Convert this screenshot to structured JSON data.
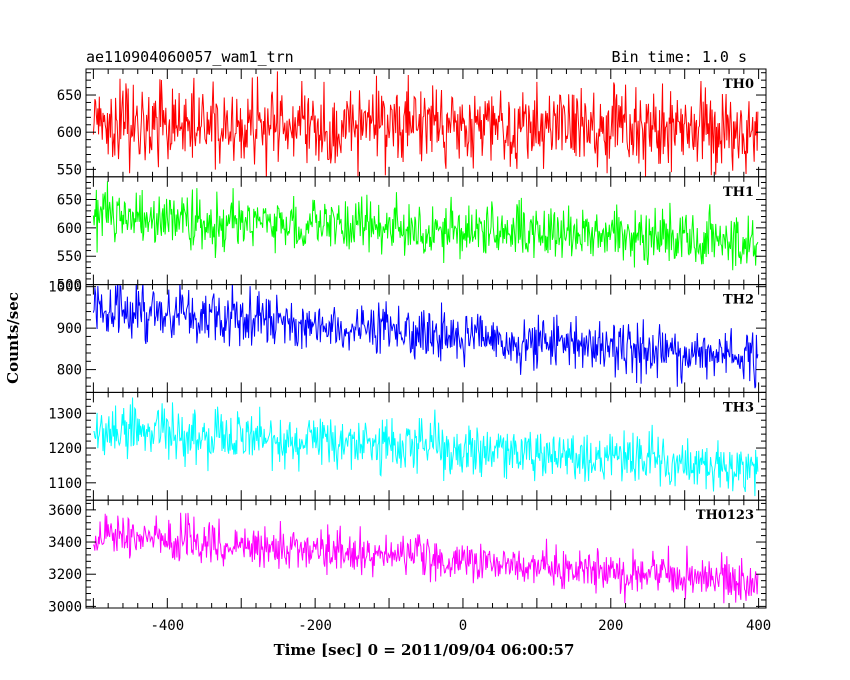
{
  "header": {
    "title": "ae110904060057_wam1_trn",
    "bin_time": "Bin time: 1.0 s"
  },
  "chart_data": {
    "type": "line",
    "xlabel": "Time [sec] 0 = 2011/09/04 06:00:57",
    "ylabel": "Counts/sec",
    "xlim": [
      -510,
      410
    ],
    "x_ticks": [
      -400,
      -200,
      0,
      200,
      400
    ],
    "x_start": -500,
    "x_end": 399,
    "x_step": 1,
    "panels": [
      {
        "name": "TH0",
        "color": "#ff0000",
        "ylim": [
          540,
          685
        ],
        "yticks": [
          550,
          600,
          650
        ],
        "mean_start": 612,
        "mean_end": 605,
        "noise": 26
      },
      {
        "name": "TH1",
        "color": "#00ff00",
        "ylim": [
          500,
          690
        ],
        "yticks": [
          500,
          550,
          600,
          650
        ],
        "mean_start": 620,
        "mean_end": 575,
        "noise": 25
      },
      {
        "name": "TH2",
        "color": "#0000ff",
        "ylim": [
          745,
          1005
        ],
        "yticks": [
          800,
          900,
          1000
        ],
        "mean_start": 950,
        "mean_end": 825,
        "noise": 32
      },
      {
        "name": "TH3",
        "color": "#00ffff",
        "ylim": [
          1050,
          1360
        ],
        "yticks": [
          1100,
          1200,
          1300
        ],
        "mean_start": 1255,
        "mean_end": 1145,
        "noise": 38
      },
      {
        "name": "TH0123",
        "color": "#ff00ff",
        "ylim": [
          2990,
          3660
        ],
        "yticks": [
          3000,
          3200,
          3400,
          3600
        ],
        "mean_start": 3450,
        "mean_end": 3150,
        "noise": 65
      }
    ]
  }
}
